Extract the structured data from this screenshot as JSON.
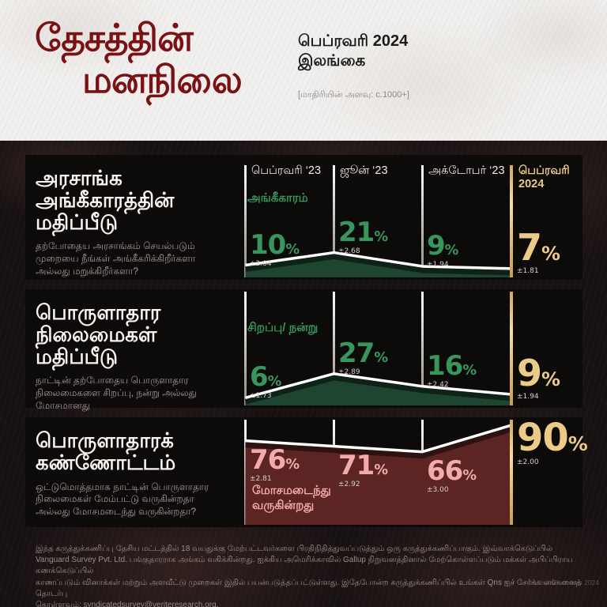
{
  "header": {
    "title_line1": "தேசத்தின்",
    "title_line2": "மனநிலை",
    "edition_line1": "பெப்ரவரி 2024",
    "edition_line2": "இலங்கை",
    "sample_note": "[மாதிரியின் அளவு: c.1000+]"
  },
  "columns": [
    "பெப்ரவரி ‘23",
    "ஜூன் ‘23",
    "அக்டோபர் ‘23",
    "பெப்ரவரி 2024"
  ],
  "colors": {
    "title_red": "#7a1114",
    "gold": "#ecca87",
    "green": "#37965b",
    "green_fill": "#1d4530",
    "pink": "#f2aba8",
    "maroon_fill": "#5d2424",
    "trend_line": "#ffffff"
  },
  "sections": [
    {
      "title_lines": [
        "அரசாங்க",
        "அங்கீகாரத்தின்",
        "மதிப்பீடு"
      ],
      "subtitle": "தற்போதைய அரசாங்கம் செயல்படும் முறையை நீங்கள் அங்கீகரிக்கிறீர்களா அல்லது மறுக்கிறீர்களா?",
      "chart": {
        "label": "அங்கீகாரம்",
        "values": [
          10,
          21,
          9,
          7
        ],
        "margins": [
          "±2.04",
          "±2.68",
          "±1.94",
          "±1.81"
        ]
      }
    },
    {
      "title_lines": [
        "பொருளாதார",
        "நிலைமைகள்",
        "மதிப்பீடு"
      ],
      "subtitle": "நாட்டின் தற்போதைய பொருளாதார நிலைமைகளை சிறப்பு, நன்று அல்லது மோசமானது",
      "chart": {
        "label": "சிறப்பு/ நன்று",
        "values": [
          6,
          27,
          16,
          9
        ],
        "margins": [
          "±1.73",
          "±2.89",
          "±2.42",
          "±1.94"
        ]
      }
    },
    {
      "title_lines": [
        "பொருளாதாரக்",
        "கண்ணோட்டம்"
      ],
      "subtitle": "ஒட்டுமொத்தமாக நாட்டின் பொருளாதார நிலைமைகள் மேம்பட்டு வருகின்றதா அல்லது மோசமடைந்து வருகின்றதா?",
      "chart": {
        "label": "மோசமடைந்து வருகின்றது",
        "values": [
          76,
          71,
          66,
          90
        ],
        "margins": [
          "±2.81",
          "±2.92",
          "±3.00",
          "±2.00"
        ]
      }
    }
  ],
  "footer": {
    "line1": "இந்த கருத்துக்கணிப்பு தேசிய மட்டத்தில் 18 வயதுக்கு மேற்பட்டவர்களை பிரதிநிதித்துவப்படுத்தும் ஒரு கருத்துக்கணிப்பாகும். இவ்வாக்கெடுப்பில்",
    "line2": "Vanguard Survey Pvt. Ltd. பங்குதாரராக அங்கம் வகிக்கின்றது. ஐக்கிய அமெரிக்காவில் Gallup நிறுவனத்தினால் மேற்கொள்ளப்படும் மக்கள் அபிப்பிராய கணக்கெடுப்பில்",
    "line3": "காணப்படும் வினாக்கள் மற்றும் அளவீட்டு முறைகள் இதில் பயன்படுத்தப்பட்டுள்ளது. இதேபோன்ற கருத்துக்கணிப்பில் உங்கள் Qns ஐச் சேர்க்க எங்களைத் தொடர்பு",
    "line4_prefix": "கொள்ளவும்: ",
    "email": "syndicatedsurvey@veriteresearch.org",
    "line4_suffix": ".",
    "copyright": "© Vérité Research 2024"
  },
  "chart_data": [
    {
      "type": "area",
      "title": "அரசாங்க அங்கீகாரத்தின் மதிப்பீடு",
      "series_label": "அங்கீகாரம்",
      "x": [
        "பெப்ரவரி ‘23",
        "ஜூன் ‘23",
        "அக்டோபர் ‘23",
        "பெப்ரவரி 2024"
      ],
      "values": [
        10,
        21,
        9,
        7
      ],
      "margins_of_error": [
        2.04,
        2.68,
        1.94,
        1.81
      ],
      "unit": "%",
      "highlight_x": "பெப்ரவரி 2024"
    },
    {
      "type": "area",
      "title": "பொருளாதார நிலைமைகள் மதிப்பீடு",
      "series_label": "சிறப்பு/ நன்று",
      "x": [
        "பெப்ரவரி ‘23",
        "ஜூன் ‘23",
        "அக்டோபர் ‘23",
        "பெப்ரவரி 2024"
      ],
      "values": [
        6,
        27,
        16,
        9
      ],
      "margins_of_error": [
        1.73,
        2.89,
        2.42,
        1.94
      ],
      "unit": "%",
      "highlight_x": "பெப்ரவரி 2024"
    },
    {
      "type": "area",
      "title": "பொருளாதாரக் கண்ணோட்டம்",
      "series_label": "மோசமடைந்து வருகின்றது",
      "x": [
        "பெப்ரவரி ‘23",
        "ஜூன் ‘23",
        "அக்டோபர் ‘23",
        "பெப்ரவரி 2024"
      ],
      "values": [
        76,
        71,
        66,
        90
      ],
      "margins_of_error": [
        2.81,
        2.92,
        3.0,
        2.0
      ],
      "unit": "%",
      "highlight_x": "பெப்ரவரி 2024"
    }
  ]
}
